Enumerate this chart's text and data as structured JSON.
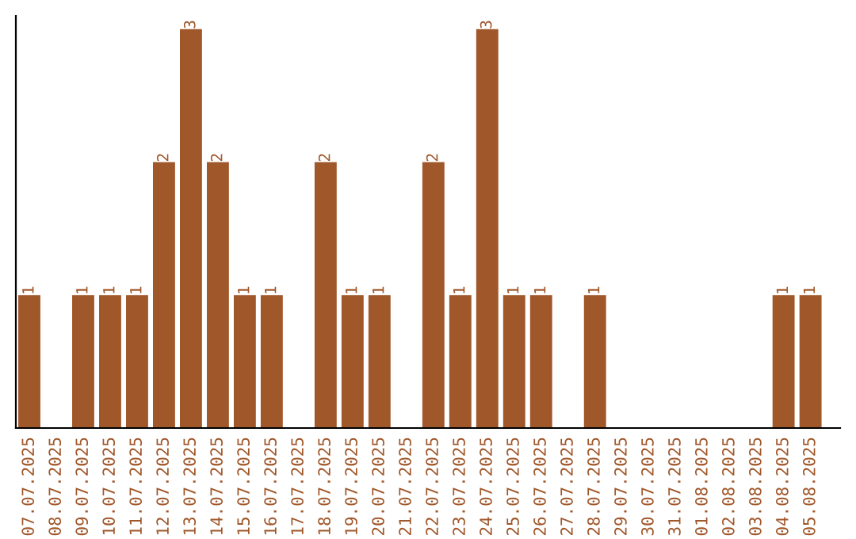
{
  "chart_data": {
    "type": "bar",
    "categories": [
      "07.07.2025",
      "08.07.2025",
      "09.07.2025",
      "10.07.2025",
      "11.07.2025",
      "12.07.2025",
      "13.07.2025",
      "14.07.2025",
      "15.07.2025",
      "16.07.2025",
      "17.07.2025",
      "18.07.2025",
      "19.07.2025",
      "20.07.2025",
      "21.07.2025",
      "22.07.2025",
      "23.07.2025",
      "24.07.2025",
      "25.07.2025",
      "26.07.2025",
      "27.07.2025",
      "28.07.2025",
      "29.07.2025",
      "30.07.2025",
      "31.07.2025",
      "01.08.2025",
      "02.08.2025",
      "03.08.2025",
      "04.08.2025",
      "05.08.2025"
    ],
    "values": [
      1,
      0,
      1,
      1,
      1,
      2,
      3,
      2,
      1,
      1,
      0,
      2,
      1,
      1,
      0,
      2,
      1,
      3,
      1,
      1,
      0,
      1,
      0,
      0,
      0,
      0,
      0,
      0,
      1,
      1
    ],
    "value_labels": [
      "1",
      null,
      "1",
      "1",
      "1",
      "2",
      "3",
      "2",
      "1",
      "1",
      null,
      "2",
      "1",
      "1",
      null,
      "2",
      "1",
      "3",
      "1",
      "1",
      null,
      "1",
      null,
      null,
      null,
      null,
      null,
      null,
      "1",
      "1"
    ],
    "color": "#a0572a",
    "ylim": [
      0,
      3.1
    ],
    "tick_labels": "x",
    "grid": false,
    "legend": false
  }
}
